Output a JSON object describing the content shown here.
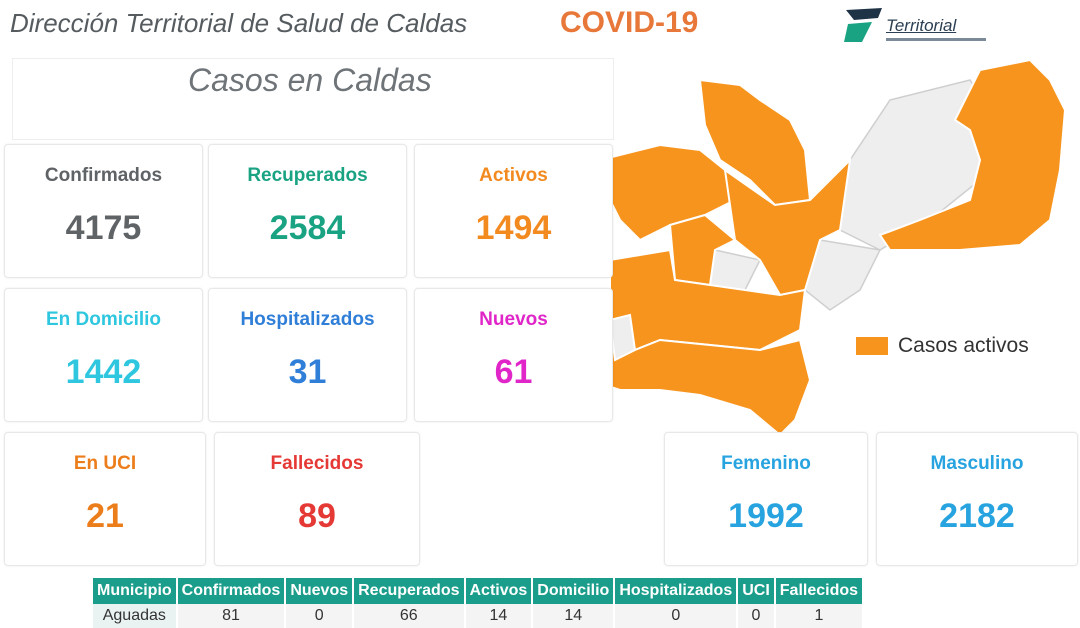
{
  "header": {
    "title": "Dirección Territorial de Salud de Caldas",
    "covid": "COVID-19",
    "logo_text": "Territorial"
  },
  "page_title": "Casos en Caldas",
  "cards": {
    "confirmados": {
      "label": "Confirmados",
      "value": "4175",
      "color": "#5f6366"
    },
    "recuperados": {
      "label": "Recuperados",
      "value": "2584",
      "color": "#1aa383"
    },
    "activos": {
      "label": "Activos",
      "value": "1494",
      "color": "#f28a1f"
    },
    "domicilio": {
      "label": "En Domicilio",
      "value": "1442",
      "color": "#2ec7df"
    },
    "hospitalizados": {
      "label": "Hospitalizados",
      "value": "31",
      "color": "#2f7ed8"
    },
    "nuevos": {
      "label": "Nuevos",
      "value": "61",
      "color": "#e026c8"
    },
    "uci": {
      "label": "En UCI",
      "value": "21",
      "color": "#ec7d1b"
    },
    "fallecidos": {
      "label": "Fallecidos",
      "value": "89",
      "color": "#e53935"
    },
    "femenino": {
      "label": "Femenino",
      "value": "1992",
      "color": "#27a3e0"
    },
    "masculino": {
      "label": "Masculino",
      "value": "2182",
      "color": "#27a3e0"
    }
  },
  "map": {
    "legend_label": "Casos activos",
    "active_color": "#f7941d",
    "inactive_color": "#eeeeee"
  },
  "table": {
    "headers": [
      "Municipio",
      "Confirmados",
      "Nuevos",
      "Recuperados",
      "Activos",
      "Domicilio",
      "Hospitalizados",
      "UCI",
      "Fallecidos"
    ],
    "rows": [
      [
        "Aguadas",
        "81",
        "0",
        "66",
        "14",
        "14",
        "0",
        "0",
        "1"
      ]
    ]
  }
}
